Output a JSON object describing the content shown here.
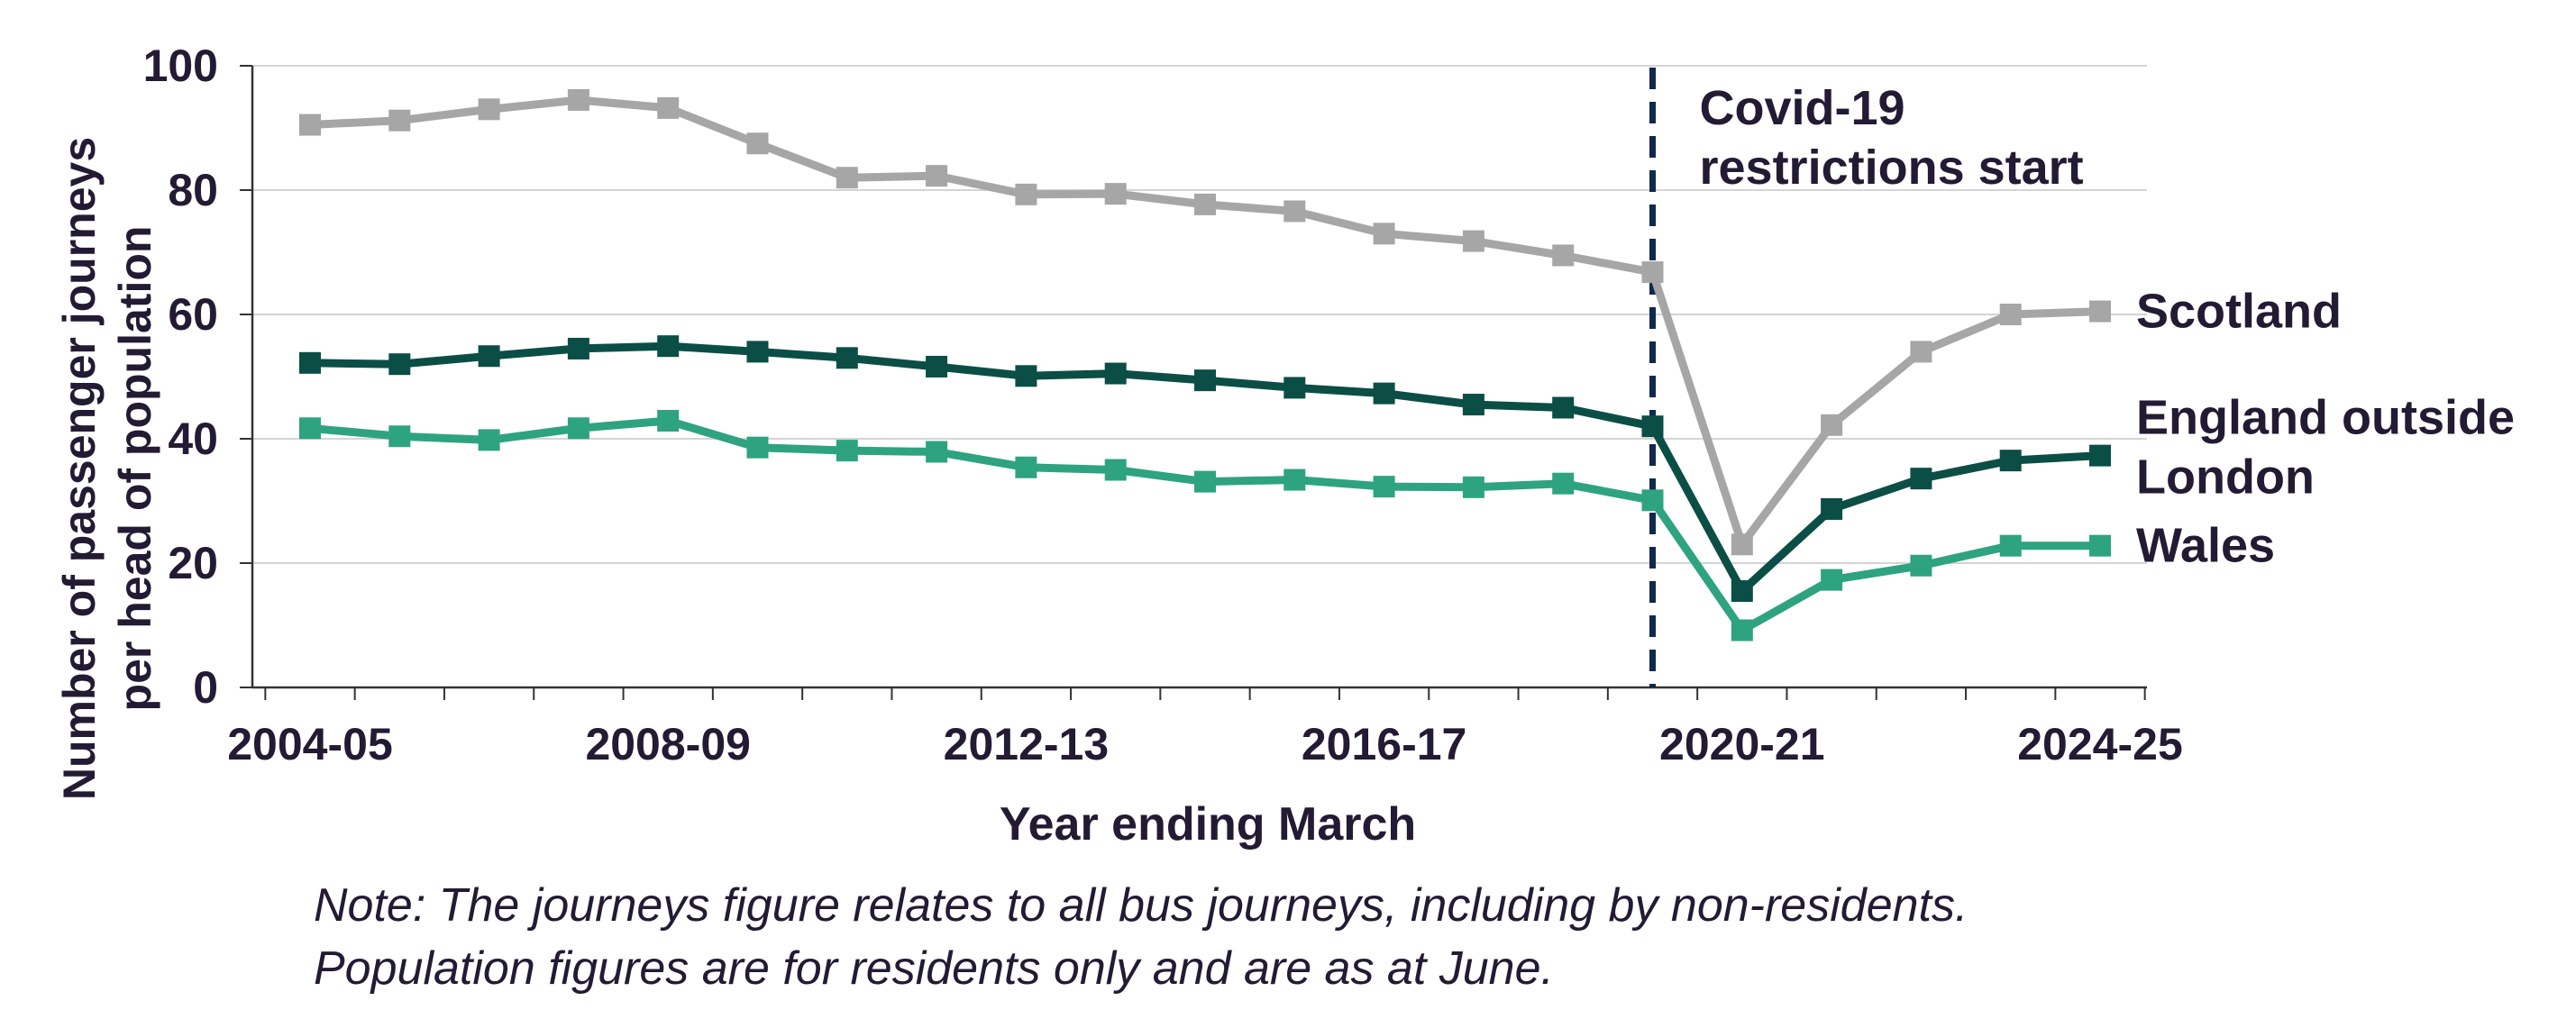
{
  "chart_data": {
    "type": "line",
    "xlabel": "Year ending March",
    "ylabel_lines": [
      "Number of passenger journeys",
      "per head of population"
    ],
    "ylim": [
      0,
      100
    ],
    "yticks": [
      0,
      20,
      40,
      60,
      80,
      100
    ],
    "grid": true,
    "categories": [
      "2004-05",
      "2005-06",
      "2006-07",
      "2007-08",
      "2008-09",
      "2009-10",
      "2010-11",
      "2011-12",
      "2012-13",
      "2013-14",
      "2014-15",
      "2015-16",
      "2016-17",
      "2017-18",
      "2018-19",
      "2019-20",
      "2020-21",
      "2021-22",
      "2022-23",
      "2023-24",
      "2024-25"
    ],
    "x_tick_labels": [
      "2004-05",
      "2008-09",
      "2012-13",
      "2016-17",
      "2020-21",
      "2024-25"
    ],
    "series": [
      {
        "name": "Scotland",
        "label_lines": [
          "Scotland"
        ],
        "color": "#a6a6a6",
        "values": [
          90.5,
          91.2,
          93.0,
          94.5,
          93.2,
          87.5,
          82.0,
          82.3,
          79.3,
          79.4,
          77.7,
          76.6,
          73.0,
          71.8,
          69.5,
          66.8,
          23.0,
          42.2,
          54.0,
          60.0,
          60.5
        ]
      },
      {
        "name": "England outside London",
        "label_lines": [
          "England outside",
          "London"
        ],
        "color": "#0b4e46",
        "values": [
          52.2,
          52.0,
          53.3,
          54.5,
          54.9,
          54.0,
          53.0,
          51.6,
          50.1,
          50.5,
          49.4,
          48.2,
          47.3,
          45.5,
          45.0,
          42.0,
          15.5,
          28.7,
          33.6,
          36.5,
          37.3
        ]
      },
      {
        "name": "Wales",
        "label_lines": [
          "Wales"
        ],
        "color": "#2ea380",
        "values": [
          41.7,
          40.4,
          39.8,
          41.7,
          42.9,
          38.6,
          38.1,
          37.9,
          35.4,
          35.0,
          33.1,
          33.4,
          32.3,
          32.2,
          32.8,
          30.1,
          9.2,
          17.3,
          19.6,
          22.8,
          22.8
        ]
      }
    ],
    "annotation": {
      "lines": [
        "Covid-19",
        "restrictions start"
      ],
      "x_category": "2019-20",
      "color": "#10284f"
    }
  },
  "note": {
    "line1": "Note: The journeys figure relates to all bus journeys, including by non-residents.",
    "line2": "Population figures are for residents only and are as at June."
  }
}
